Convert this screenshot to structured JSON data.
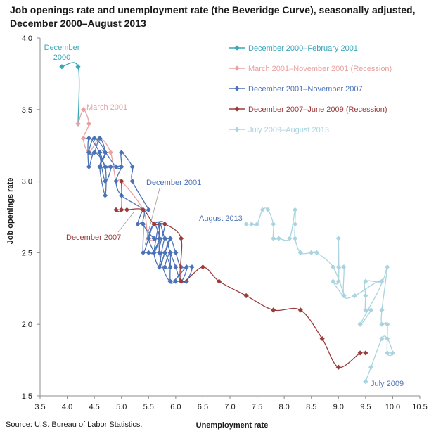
{
  "title_line1": "Job openings rate and unemployment rate (the Beveridge Curve), seasonally adjusted,",
  "title_line2": "December 2000–August 2013",
  "source": "Source: U.S. Bureau of Labor Statistics.",
  "chart_data": {
    "type": "scatter",
    "xlabel": "Unemployment rate",
    "ylabel": "Job openings rate",
    "xlim": [
      3.5,
      10.5
    ],
    "ylim": [
      1.5,
      4.0
    ],
    "xticks": [
      "3.5",
      "4.0",
      "4.5",
      "5.0",
      "5.5",
      "6.0",
      "6.5",
      "7.0",
      "7.5",
      "8.0",
      "8.5",
      "9.0",
      "9.5",
      "10.0",
      "10.5"
    ],
    "yticks": [
      "1.5",
      "2.0",
      "2.5",
      "3.0",
      "3.5",
      "4.0"
    ],
    "grid": false,
    "legend_position": "top-right",
    "series": [
      {
        "name": "December  2000–February 2001",
        "color": "#3aa6b8",
        "points": [
          [
            3.9,
            3.8
          ],
          [
            4.2,
            3.8
          ],
          [
            4.2,
            3.4
          ]
        ]
      },
      {
        "name": "March 2001–November  2001 (Recession)",
        "color": "#e8a1a0",
        "points": [
          [
            4.2,
            3.4
          ],
          [
            4.3,
            3.5
          ],
          [
            4.4,
            3.4
          ],
          [
            4.3,
            3.3
          ],
          [
            4.4,
            3.2
          ],
          [
            4.6,
            3.3
          ],
          [
            4.8,
            3.2
          ],
          [
            4.9,
            3.0
          ],
          [
            5.0,
            3.0
          ],
          [
            5.4,
            2.8
          ],
          [
            5.5,
            2.6
          ],
          [
            5.7,
            2.6
          ]
        ]
      },
      {
        "name": "December  2001–November 2007",
        "color": "#4a72b8",
        "points": [
          [
            5.7,
            2.6
          ],
          [
            5.7,
            2.7
          ],
          [
            5.7,
            2.5
          ],
          [
            5.8,
            2.5
          ],
          [
            5.9,
            2.4
          ],
          [
            5.8,
            2.4
          ],
          [
            5.9,
            2.5
          ],
          [
            5.9,
            2.3
          ],
          [
            6.0,
            2.3
          ],
          [
            6.1,
            2.3
          ],
          [
            6.2,
            2.3
          ],
          [
            6.3,
            2.4
          ],
          [
            6.1,
            2.4
          ],
          [
            6.0,
            2.5
          ],
          [
            5.9,
            2.6
          ],
          [
            5.8,
            2.5
          ],
          [
            5.7,
            2.4
          ],
          [
            5.6,
            2.5
          ],
          [
            5.7,
            2.6
          ],
          [
            5.6,
            2.7
          ],
          [
            5.5,
            2.6
          ],
          [
            5.4,
            2.5
          ],
          [
            5.4,
            2.7
          ],
          [
            5.3,
            2.7
          ],
          [
            5.4,
            2.8
          ],
          [
            5.5,
            2.8
          ],
          [
            5.2,
            3.0
          ],
          [
            5.2,
            3.1
          ],
          [
            5.0,
            3.2
          ],
          [
            5.0,
            3.1
          ],
          [
            4.9,
            3.1
          ],
          [
            4.7,
            3.2
          ],
          [
            4.6,
            3.2
          ],
          [
            4.7,
            3.0
          ],
          [
            4.8,
            3.1
          ],
          [
            4.6,
            3.1
          ],
          [
            4.7,
            3.2
          ],
          [
            4.5,
            3.3
          ],
          [
            4.4,
            3.2
          ],
          [
            4.5,
            3.2
          ],
          [
            4.6,
            3.3
          ],
          [
            4.7,
            3.2
          ],
          [
            4.6,
            3.1
          ],
          [
            4.7,
            2.9
          ],
          [
            4.7,
            3.1
          ],
          [
            4.5,
            3.2
          ],
          [
            4.4,
            3.1
          ],
          [
            4.4,
            3.3
          ],
          [
            4.6,
            3.2
          ],
          [
            4.7,
            3.1
          ],
          [
            4.8,
            3.1
          ],
          [
            4.9,
            3.1
          ],
          [
            5.0,
            3.1
          ],
          [
            4.9,
            3.0
          ],
          [
            5.0,
            2.9
          ],
          [
            5.4,
            2.8
          ],
          [
            5.4,
            2.7
          ],
          [
            5.6,
            2.6
          ],
          [
            5.7,
            2.6
          ],
          [
            5.6,
            2.5
          ],
          [
            5.7,
            2.7
          ],
          [
            5.8,
            2.6
          ],
          [
            5.9,
            2.6
          ],
          [
            5.8,
            2.5
          ],
          [
            5.7,
            2.4
          ],
          [
            5.8,
            2.6
          ],
          [
            5.9,
            2.5
          ],
          [
            6.0,
            2.4
          ],
          [
            6.1,
            2.3
          ],
          [
            6.2,
            2.4
          ],
          [
            5.9,
            2.3
          ],
          [
            5.7,
            2.5
          ],
          [
            5.8,
            2.7
          ],
          [
            5.6,
            2.7
          ],
          [
            5.5,
            2.6
          ],
          [
            5.6,
            2.5
          ],
          [
            5.5,
            2.5
          ]
        ]
      },
      {
        "name": "December  2007–June 2009 (Recession)",
        "color": "#9b3b3b",
        "points": [
          [
            5.0,
            3.0
          ],
          [
            5.0,
            2.8
          ],
          [
            4.9,
            2.8
          ],
          [
            5.0,
            2.8
          ],
          [
            5.1,
            2.8
          ],
          [
            5.4,
            2.8
          ],
          [
            5.6,
            2.7
          ],
          [
            5.8,
            2.7
          ],
          [
            6.1,
            2.6
          ],
          [
            6.1,
            2.3
          ],
          [
            6.5,
            2.4
          ],
          [
            6.8,
            2.3
          ],
          [
            7.3,
            2.2
          ],
          [
            7.8,
            2.1
          ],
          [
            8.3,
            2.1
          ],
          [
            8.7,
            1.9
          ],
          [
            9.0,
            1.7
          ],
          [
            9.4,
            1.8
          ],
          [
            9.5,
            1.8
          ]
        ]
      },
      {
        "name": "July 2009–August 2013",
        "color": "#a9d4e0",
        "points": [
          [
            9.5,
            1.6
          ],
          [
            9.6,
            1.7
          ],
          [
            9.8,
            1.9
          ],
          [
            9.9,
            1.9
          ],
          [
            10.0,
            1.8
          ],
          [
            9.9,
            1.8
          ],
          [
            9.9,
            2.0
          ],
          [
            9.8,
            2.0
          ],
          [
            9.8,
            2.1
          ],
          [
            9.9,
            2.4
          ],
          [
            9.8,
            2.3
          ],
          [
            9.5,
            2.3
          ],
          [
            9.5,
            2.2
          ],
          [
            9.5,
            2.1
          ],
          [
            9.6,
            2.1
          ],
          [
            9.4,
            2.0
          ],
          [
            9.8,
            2.3
          ],
          [
            9.3,
            2.2
          ],
          [
            9.1,
            2.2
          ],
          [
            9.1,
            2.4
          ],
          [
            9.0,
            2.4
          ],
          [
            9.0,
            2.6
          ],
          [
            9.0,
            2.3
          ],
          [
            8.9,
            2.3
          ],
          [
            9.1,
            2.2
          ],
          [
            8.9,
            2.4
          ],
          [
            8.6,
            2.5
          ],
          [
            8.5,
            2.5
          ],
          [
            8.3,
            2.5
          ],
          [
            8.2,
            2.6
          ],
          [
            8.2,
            2.7
          ],
          [
            8.2,
            2.8
          ],
          [
            8.1,
            2.6
          ],
          [
            7.9,
            2.6
          ],
          [
            7.8,
            2.6
          ],
          [
            7.8,
            2.7
          ],
          [
            7.7,
            2.8
          ],
          [
            7.6,
            2.8
          ],
          [
            7.5,
            2.7
          ],
          [
            7.4,
            2.7
          ],
          [
            7.3,
            2.7
          ]
        ]
      }
    ],
    "annotations": [
      {
        "text": "December",
        "color": "#3aa6b8"
      },
      {
        "text": "2000",
        "color": "#3aa6b8"
      },
      {
        "text": "March 2001",
        "color": "#e8a1a0"
      },
      {
        "text": "December 2001",
        "color": "#4a72b8"
      },
      {
        "text": "December 2007",
        "color": "#9b3b3b"
      },
      {
        "text": "August 2013",
        "color": "#4a72b8"
      },
      {
        "text": "July 2009",
        "color": "#4a72b8"
      }
    ]
  }
}
